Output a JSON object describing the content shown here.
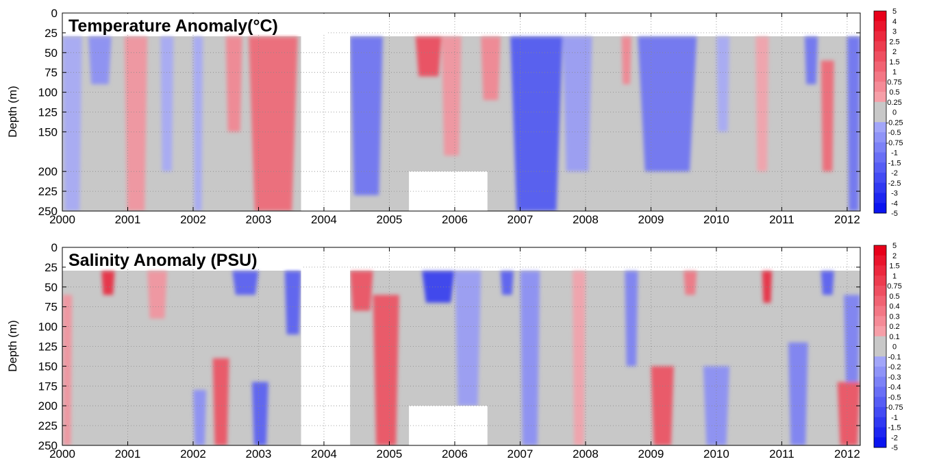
{
  "chart_data": [
    {
      "type": "heatmap",
      "title": "Temperature Anomaly(°C)",
      "ylabel": "Depth (m)",
      "xlim": [
        2000,
        2012.2
      ],
      "ylim": [
        250,
        0
      ],
      "x_ticks": [
        "2000",
        "2001",
        "2002",
        "2003",
        "2004",
        "2005",
        "2006",
        "2007",
        "2008",
        "2009",
        "2010",
        "2011",
        "2012"
      ],
      "y_ticks": [
        "0",
        "25",
        "50",
        "75",
        "100",
        "125",
        "150",
        "200",
        "225",
        "250"
      ],
      "grid": true,
      "data_depth_range": [
        30,
        250
      ],
      "colorbar_labels": [
        "5",
        "4",
        "3",
        "2.5",
        "2",
        "1.5",
        "1",
        "0.75",
        "0.5",
        "0.25",
        "0",
        "-0.25",
        "-0.5",
        "-0.75",
        "-1",
        "-1.5",
        "-2",
        "-2.5",
        "-3",
        "-4",
        "-5"
      ],
      "colors": {
        "positive": "#e8001a",
        "negative": "#0a14f0",
        "neutral": "#c8c8c8"
      },
      "gaps": [
        {
          "x_start": 2003.65,
          "x_end": 2004.4,
          "depth_top": 0,
          "depth_bottom": 250
        },
        {
          "x_start": 2005.3,
          "x_end": 2006.5,
          "depth_top": 200,
          "depth_bottom": 250
        }
      ],
      "anomaly_features": [
        {
          "x_start": 2000.0,
          "x_end": 2000.3,
          "depth_top": 30,
          "depth_bottom": 250,
          "value": -0.5
        },
        {
          "x_start": 2000.4,
          "x_end": 2000.75,
          "depth_top": 30,
          "depth_bottom": 90,
          "value": -1.0
        },
        {
          "x_start": 2000.95,
          "x_end": 2001.3,
          "depth_top": 30,
          "depth_bottom": 250,
          "value": 0.75
        },
        {
          "x_start": 2001.5,
          "x_end": 2001.7,
          "depth_top": 30,
          "depth_bottom": 200,
          "value": -0.5
        },
        {
          "x_start": 2002.0,
          "x_end": 2002.15,
          "depth_top": 30,
          "depth_bottom": 250,
          "value": -0.5
        },
        {
          "x_start": 2002.5,
          "x_end": 2002.75,
          "depth_top": 30,
          "depth_bottom": 150,
          "value": 1.0
        },
        {
          "x_start": 2002.85,
          "x_end": 2003.6,
          "depth_top": 30,
          "depth_bottom": 250,
          "value": 1.5
        },
        {
          "x_start": 2004.4,
          "x_end": 2004.9,
          "depth_top": 30,
          "depth_bottom": 230,
          "value": -1.5
        },
        {
          "x_start": 2005.4,
          "x_end": 2005.8,
          "depth_top": 30,
          "depth_bottom": 80,
          "value": 2.0
        },
        {
          "x_start": 2005.8,
          "x_end": 2006.1,
          "depth_top": 30,
          "depth_bottom": 180,
          "value": 0.75
        },
        {
          "x_start": 2006.4,
          "x_end": 2006.7,
          "depth_top": 30,
          "depth_bottom": 110,
          "value": 1.0
        },
        {
          "x_start": 2006.85,
          "x_end": 2007.65,
          "depth_top": 30,
          "depth_bottom": 250,
          "value": -2.0
        },
        {
          "x_start": 2007.65,
          "x_end": 2008.1,
          "depth_top": 30,
          "depth_bottom": 200,
          "value": -0.75
        },
        {
          "x_start": 2008.55,
          "x_end": 2008.7,
          "depth_top": 30,
          "depth_bottom": 90,
          "value": 1.0
        },
        {
          "x_start": 2008.8,
          "x_end": 2009.7,
          "depth_top": 30,
          "depth_bottom": 200,
          "value": -1.5
        },
        {
          "x_start": 2010.0,
          "x_end": 2010.2,
          "depth_top": 30,
          "depth_bottom": 150,
          "value": -0.5
        },
        {
          "x_start": 2010.6,
          "x_end": 2010.8,
          "depth_top": 30,
          "depth_bottom": 200,
          "value": 0.5
        },
        {
          "x_start": 2011.35,
          "x_end": 2011.55,
          "depth_top": 30,
          "depth_bottom": 90,
          "value": -1.5
        },
        {
          "x_start": 2011.6,
          "x_end": 2011.8,
          "depth_top": 60,
          "depth_bottom": 200,
          "value": 1.5
        },
        {
          "x_start": 2012.0,
          "x_end": 2012.2,
          "depth_top": 30,
          "depth_bottom": 250,
          "value": -1.5
        }
      ]
    },
    {
      "type": "heatmap",
      "title": "Salinity Anomaly (PSU)",
      "ylabel": "Depth (m)",
      "xlim": [
        2000,
        2012.2
      ],
      "ylim": [
        250,
        0
      ],
      "x_ticks": [
        "2000",
        "2001",
        "2002",
        "2003",
        "2004",
        "2005",
        "2006",
        "2007",
        "2008",
        "2009",
        "2010",
        "2011",
        "2012"
      ],
      "y_ticks": [
        "0",
        "25",
        "50",
        "75",
        "100",
        "125",
        "150",
        "175",
        "200",
        "225",
        "250"
      ],
      "grid": true,
      "data_depth_range": [
        30,
        250
      ],
      "colorbar_labels": [
        "5",
        "2",
        "1.5",
        "1",
        "0.75",
        "0.5",
        "0.4",
        "0.3",
        "0.2",
        "0.1",
        "0",
        "-0.1",
        "-0.2",
        "-0.3",
        "-0.4",
        "-0.5",
        "-0.75",
        "-1",
        "-1.5",
        "-2",
        "-5"
      ],
      "colors": {
        "positive": "#e8001a",
        "negative": "#0a14f0",
        "neutral": "#c8c8c8"
      },
      "gaps": [
        {
          "x_start": 2003.65,
          "x_end": 2004.4,
          "depth_top": 0,
          "depth_bottom": 250
        },
        {
          "x_start": 2005.3,
          "x_end": 2006.5,
          "depth_top": 200,
          "depth_bottom": 250
        }
      ],
      "anomaly_features": [
        {
          "x_start": 2000.0,
          "x_end": 2000.15,
          "depth_top": 60,
          "depth_bottom": 250,
          "value": 0.3
        },
        {
          "x_start": 2000.6,
          "x_end": 2000.8,
          "depth_top": 30,
          "depth_bottom": 60,
          "value": 1.0
        },
        {
          "x_start": 2001.3,
          "x_end": 2001.6,
          "depth_top": 30,
          "depth_bottom": 90,
          "value": 0.3
        },
        {
          "x_start": 2002.0,
          "x_end": 2002.2,
          "depth_top": 180,
          "depth_bottom": 250,
          "value": -0.4
        },
        {
          "x_start": 2002.3,
          "x_end": 2002.55,
          "depth_top": 140,
          "depth_bottom": 250,
          "value": 0.75
        },
        {
          "x_start": 2002.6,
          "x_end": 2003.0,
          "depth_top": 30,
          "depth_bottom": 60,
          "value": -0.75
        },
        {
          "x_start": 2002.9,
          "x_end": 2003.15,
          "depth_top": 170,
          "depth_bottom": 250,
          "value": -0.75
        },
        {
          "x_start": 2003.4,
          "x_end": 2003.65,
          "depth_top": 30,
          "depth_bottom": 110,
          "value": -0.75
        },
        {
          "x_start": 2004.4,
          "x_end": 2004.75,
          "depth_top": 30,
          "depth_bottom": 80,
          "value": 0.75
        },
        {
          "x_start": 2004.75,
          "x_end": 2005.15,
          "depth_top": 60,
          "depth_bottom": 250,
          "value": 0.75
        },
        {
          "x_start": 2005.5,
          "x_end": 2006.0,
          "depth_top": 30,
          "depth_bottom": 70,
          "value": -1.0
        },
        {
          "x_start": 2006.0,
          "x_end": 2006.4,
          "depth_top": 30,
          "depth_bottom": 200,
          "value": -0.3
        },
        {
          "x_start": 2006.7,
          "x_end": 2006.9,
          "depth_top": 30,
          "depth_bottom": 60,
          "value": -0.75
        },
        {
          "x_start": 2007.0,
          "x_end": 2007.3,
          "depth_top": 30,
          "depth_bottom": 250,
          "value": -0.4
        },
        {
          "x_start": 2007.8,
          "x_end": 2008.0,
          "depth_top": 30,
          "depth_bottom": 250,
          "value": 0.2
        },
        {
          "x_start": 2008.6,
          "x_end": 2008.8,
          "depth_top": 30,
          "depth_bottom": 150,
          "value": -0.5
        },
        {
          "x_start": 2009.0,
          "x_end": 2009.35,
          "depth_top": 150,
          "depth_bottom": 250,
          "value": 0.75
        },
        {
          "x_start": 2009.5,
          "x_end": 2009.7,
          "depth_top": 30,
          "depth_bottom": 60,
          "value": 0.5
        },
        {
          "x_start": 2009.8,
          "x_end": 2010.2,
          "depth_top": 150,
          "depth_bottom": 250,
          "value": -0.4
        },
        {
          "x_start": 2010.7,
          "x_end": 2010.85,
          "depth_top": 30,
          "depth_bottom": 70,
          "value": 1.0
        },
        {
          "x_start": 2011.1,
          "x_end": 2011.4,
          "depth_top": 120,
          "depth_bottom": 250,
          "value": -0.5
        },
        {
          "x_start": 2011.6,
          "x_end": 2011.8,
          "depth_top": 30,
          "depth_bottom": 60,
          "value": -0.75
        },
        {
          "x_start": 2011.85,
          "x_end": 2012.2,
          "depth_top": 170,
          "depth_bottom": 250,
          "value": 0.75
        },
        {
          "x_start": 2011.95,
          "x_end": 2012.2,
          "depth_top": 60,
          "depth_bottom": 170,
          "value": -0.5
        }
      ]
    }
  ]
}
